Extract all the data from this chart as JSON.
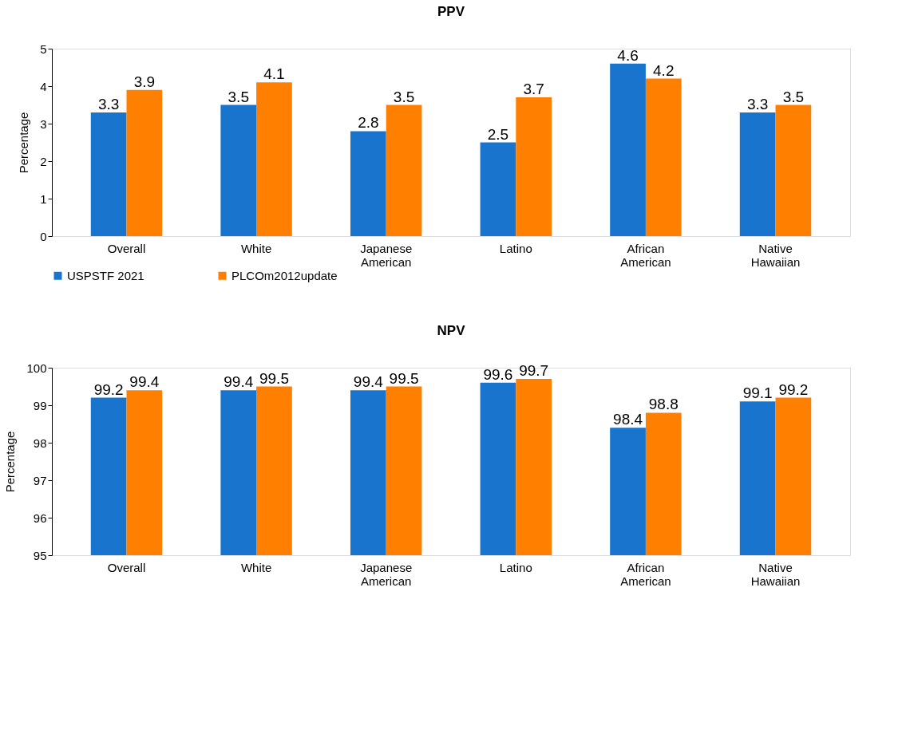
{
  "chart_data": [
    {
      "type": "bar",
      "title": "PPV",
      "ylabel": "Percentage",
      "categories": [
        "Overall",
        "White",
        "Japanese American",
        "Latino",
        "African American",
        "Native Hawaiian"
      ],
      "series": [
        {
          "name": "USPSTF 2021",
          "color": "#1874cd",
          "values": [
            3.3,
            3.5,
            2.8,
            2.5,
            4.6,
            3.3
          ]
        },
        {
          "name": "PLCOm2012update",
          "color": "#ff7f00",
          "values": [
            3.9,
            4.1,
            3.5,
            3.7,
            4.2,
            3.5
          ]
        }
      ],
      "ylim": [
        0,
        5
      ],
      "yticks": [
        0,
        1,
        2,
        3,
        4,
        5
      ],
      "data_labels": true,
      "grid": false,
      "legend": "bottom"
    },
    {
      "type": "bar",
      "title": "NPV",
      "ylabel": "Percentage",
      "categories": [
        "Overall",
        "White",
        "Japanese American",
        "Latino",
        "African American",
        "Native Hawaiian"
      ],
      "series": [
        {
          "color": "#1874cd",
          "values": [
            99.2,
            99.4,
            99.4,
            99.6,
            98.4,
            99.1
          ]
        },
        {
          "color": "#ff7f00",
          "values": [
            99.4,
            99.5,
            99.5,
            99.7,
            98.8,
            99.2
          ]
        }
      ],
      "ylim": [
        95,
        100
      ],
      "yticks": [
        95,
        96,
        97,
        98,
        99,
        100
      ],
      "data_labels": true,
      "grid": false
    }
  ]
}
